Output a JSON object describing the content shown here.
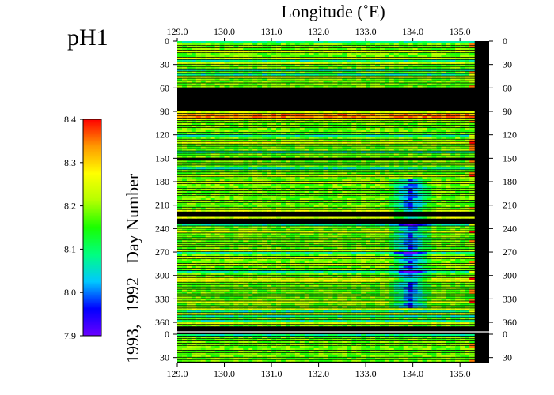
{
  "chart_data": {
    "type": "heatmap",
    "title": "pH1",
    "xlabel": "Longitude (˚E)",
    "ylabel_parts": [
      "1993,",
      "1992",
      "Day Number"
    ],
    "x_ticks": [
      129.0,
      130.0,
      131.0,
      132.0,
      133.0,
      134.0,
      135.0
    ],
    "x_tick_labels": [
      "129.0",
      "130.0",
      "131.0",
      "132.0",
      "133.0",
      "134.0",
      "135.0"
    ],
    "xlim": [
      129.0,
      135.35
    ],
    "y_ticks_1992": [
      "0",
      "30",
      "60",
      "90",
      "120",
      "150",
      "180",
      "210",
      "240",
      "270",
      "300",
      "330",
      "360"
    ],
    "y_ticks_1993": [
      "0",
      "30"
    ],
    "colorbar": {
      "min": 7.9,
      "max": 8.4,
      "ticks": [
        "7.9",
        "8.0",
        "8.1",
        "8.2",
        "8.3",
        "8.4"
      ],
      "colors": [
        "#6a00ff",
        "#0000ff",
        "#00c8ff",
        "#00ff80",
        "#19ff00",
        "#b4ff00",
        "#ffff00",
        "#ff9900",
        "#ff0000"
      ]
    },
    "gaps_day_ranges": [
      [
        60,
        88
      ],
      [
        149,
        153
      ],
      [
        219,
        223
      ],
      [
        228,
        232
      ],
      [
        265,
        267
      ]
    ],
    "features": [
      {
        "label": "high pH band",
        "days": [
          88,
          100
        ],
        "value": 8.35
      },
      {
        "label": "low pH region near 134E",
        "lon": [
          133.4,
          134.4
        ],
        "days": [
          175,
          340
        ],
        "value": 7.97
      }
    ]
  }
}
